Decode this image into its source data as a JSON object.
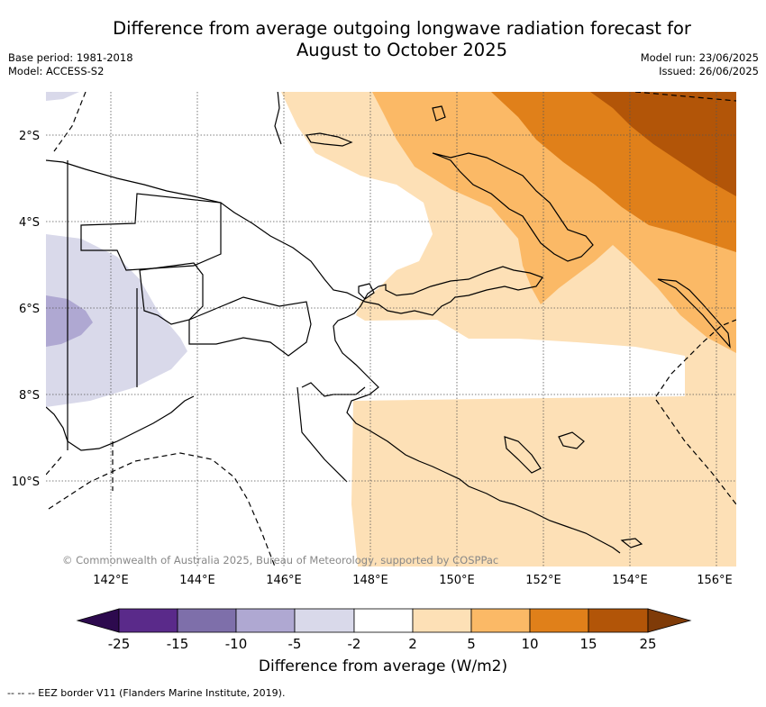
{
  "title_line1": "Difference from average outgoing longwave radiation forecast for",
  "title_line2": "August to October 2025",
  "meta_left": {
    "base_period": "Base period: 1981-2018",
    "model": "Model: ACCESS-S2"
  },
  "meta_right": {
    "model_run": "Model run: 23/06/2025",
    "issued": "Issued: 26/06/2025"
  },
  "copyright": "© Commonwealth of Australia 2025, Bureau of Meteorology, supported by COSPPac",
  "lat_labels": [
    "2°S",
    "4°S",
    "6°S",
    "8°S",
    "10°S"
  ],
  "lon_labels": [
    "142°E",
    "144°E",
    "146°E",
    "148°E",
    "150°E",
    "152°E",
    "154°E",
    "156°E"
  ],
  "colorbar": {
    "label": "Difference from average (W/m2)",
    "ticks": [
      "-25",
      "-15",
      "-10",
      "-5",
      "-2",
      "2",
      "5",
      "10",
      "15",
      "25"
    ],
    "colors": [
      "#2d0a4e",
      "#5a2a8a",
      "#7e6faa",
      "#afa8d2",
      "#d9d9ea",
      "#ffffff",
      "#fde0b6",
      "#fbb966",
      "#e0801a",
      "#b25508",
      "#7f3b08"
    ]
  },
  "footnote": "-- -- -- EEZ border V11 (Flanders Marine Institute, 2019)."
}
